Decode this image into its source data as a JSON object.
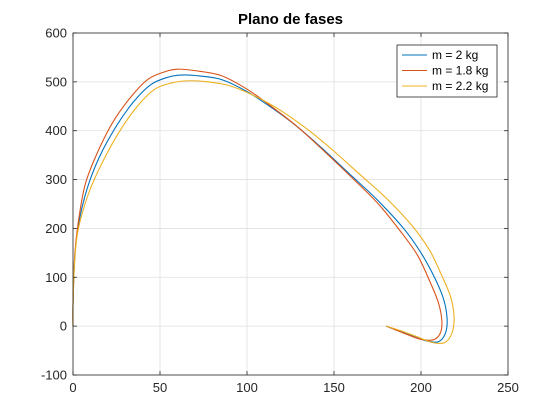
{
  "chart_data": {
    "type": "line",
    "title": "Plano de fases",
    "xlabel": "",
    "ylabel": "",
    "xlim": [
      0,
      250
    ],
    "ylim": [
      -100,
      600
    ],
    "xticks": [
      0,
      50,
      100,
      150,
      200,
      250
    ],
    "yticks": [
      -100,
      0,
      100,
      200,
      300,
      400,
      500,
      600
    ],
    "grid": true,
    "legend_position": "top-right",
    "series": [
      {
        "name": "m = 2 kg",
        "color": "#0072BD",
        "points": [
          [
            0,
            0
          ],
          [
            0,
            45
          ],
          [
            1,
            140
          ],
          [
            3,
            205
          ],
          [
            8,
            280
          ],
          [
            15,
            345
          ],
          [
            25,
            410
          ],
          [
            35,
            460
          ],
          [
            45,
            495
          ],
          [
            55,
            510
          ],
          [
            62,
            514
          ],
          [
            70,
            513
          ],
          [
            85,
            505
          ],
          [
            100,
            480
          ],
          [
            115,
            445
          ],
          [
            130,
            405
          ],
          [
            145,
            358
          ],
          [
            160,
            308
          ],
          [
            175,
            258
          ],
          [
            190,
            200
          ],
          [
            200,
            150
          ],
          [
            208,
            98
          ],
          [
            213,
            55
          ],
          [
            215,
            15
          ],
          [
            214,
            -15
          ],
          [
            210,
            -32
          ],
          [
            203,
            -30
          ],
          [
            195,
            -20
          ],
          [
            186,
            -8
          ],
          [
            180,
            0
          ]
        ]
      },
      {
        "name": "m = 1.8 kg",
        "color": "#D95319",
        "points": [
          [
            0,
            0
          ],
          [
            0,
            45
          ],
          [
            1,
            145
          ],
          [
            3,
            212
          ],
          [
            7,
            290
          ],
          [
            14,
            355
          ],
          [
            23,
            418
          ],
          [
            33,
            468
          ],
          [
            43,
            505
          ],
          [
            53,
            521
          ],
          [
            60,
            526
          ],
          [
            70,
            523
          ],
          [
            85,
            513
          ],
          [
            100,
            485
          ],
          [
            115,
            447
          ],
          [
            130,
            405
          ],
          [
            145,
            356
          ],
          [
            160,
            305
          ],
          [
            175,
            252
          ],
          [
            188,
            195
          ],
          [
            198,
            145
          ],
          [
            205,
            92
          ],
          [
            210,
            48
          ],
          [
            212,
            10
          ],
          [
            211,
            -15
          ],
          [
            207,
            -28
          ],
          [
            200,
            -27
          ],
          [
            192,
            -17
          ],
          [
            185,
            -7
          ],
          [
            180,
            0
          ]
        ]
      },
      {
        "name": "m = 2.2 kg",
        "color": "#EDB120",
        "points": [
          [
            0,
            0
          ],
          [
            0,
            45
          ],
          [
            1,
            135
          ],
          [
            3,
            198
          ],
          [
            9,
            272
          ],
          [
            17,
            336
          ],
          [
            27,
            400
          ],
          [
            37,
            450
          ],
          [
            47,
            485
          ],
          [
            57,
            498
          ],
          [
            65,
            502
          ],
          [
            75,
            501
          ],
          [
            90,
            492
          ],
          [
            105,
            470
          ],
          [
            120,
            440
          ],
          [
            135,
            402
          ],
          [
            150,
            358
          ],
          [
            165,
            310
          ],
          [
            180,
            262
          ],
          [
            195,
            205
          ],
          [
            205,
            155
          ],
          [
            212,
            103
          ],
          [
            217,
            60
          ],
          [
            219,
            20
          ],
          [
            218,
            -12
          ],
          [
            214,
            -33
          ],
          [
            207,
            -34
          ],
          [
            198,
            -22
          ],
          [
            188,
            -9
          ],
          [
            180,
            0
          ]
        ]
      }
    ]
  }
}
